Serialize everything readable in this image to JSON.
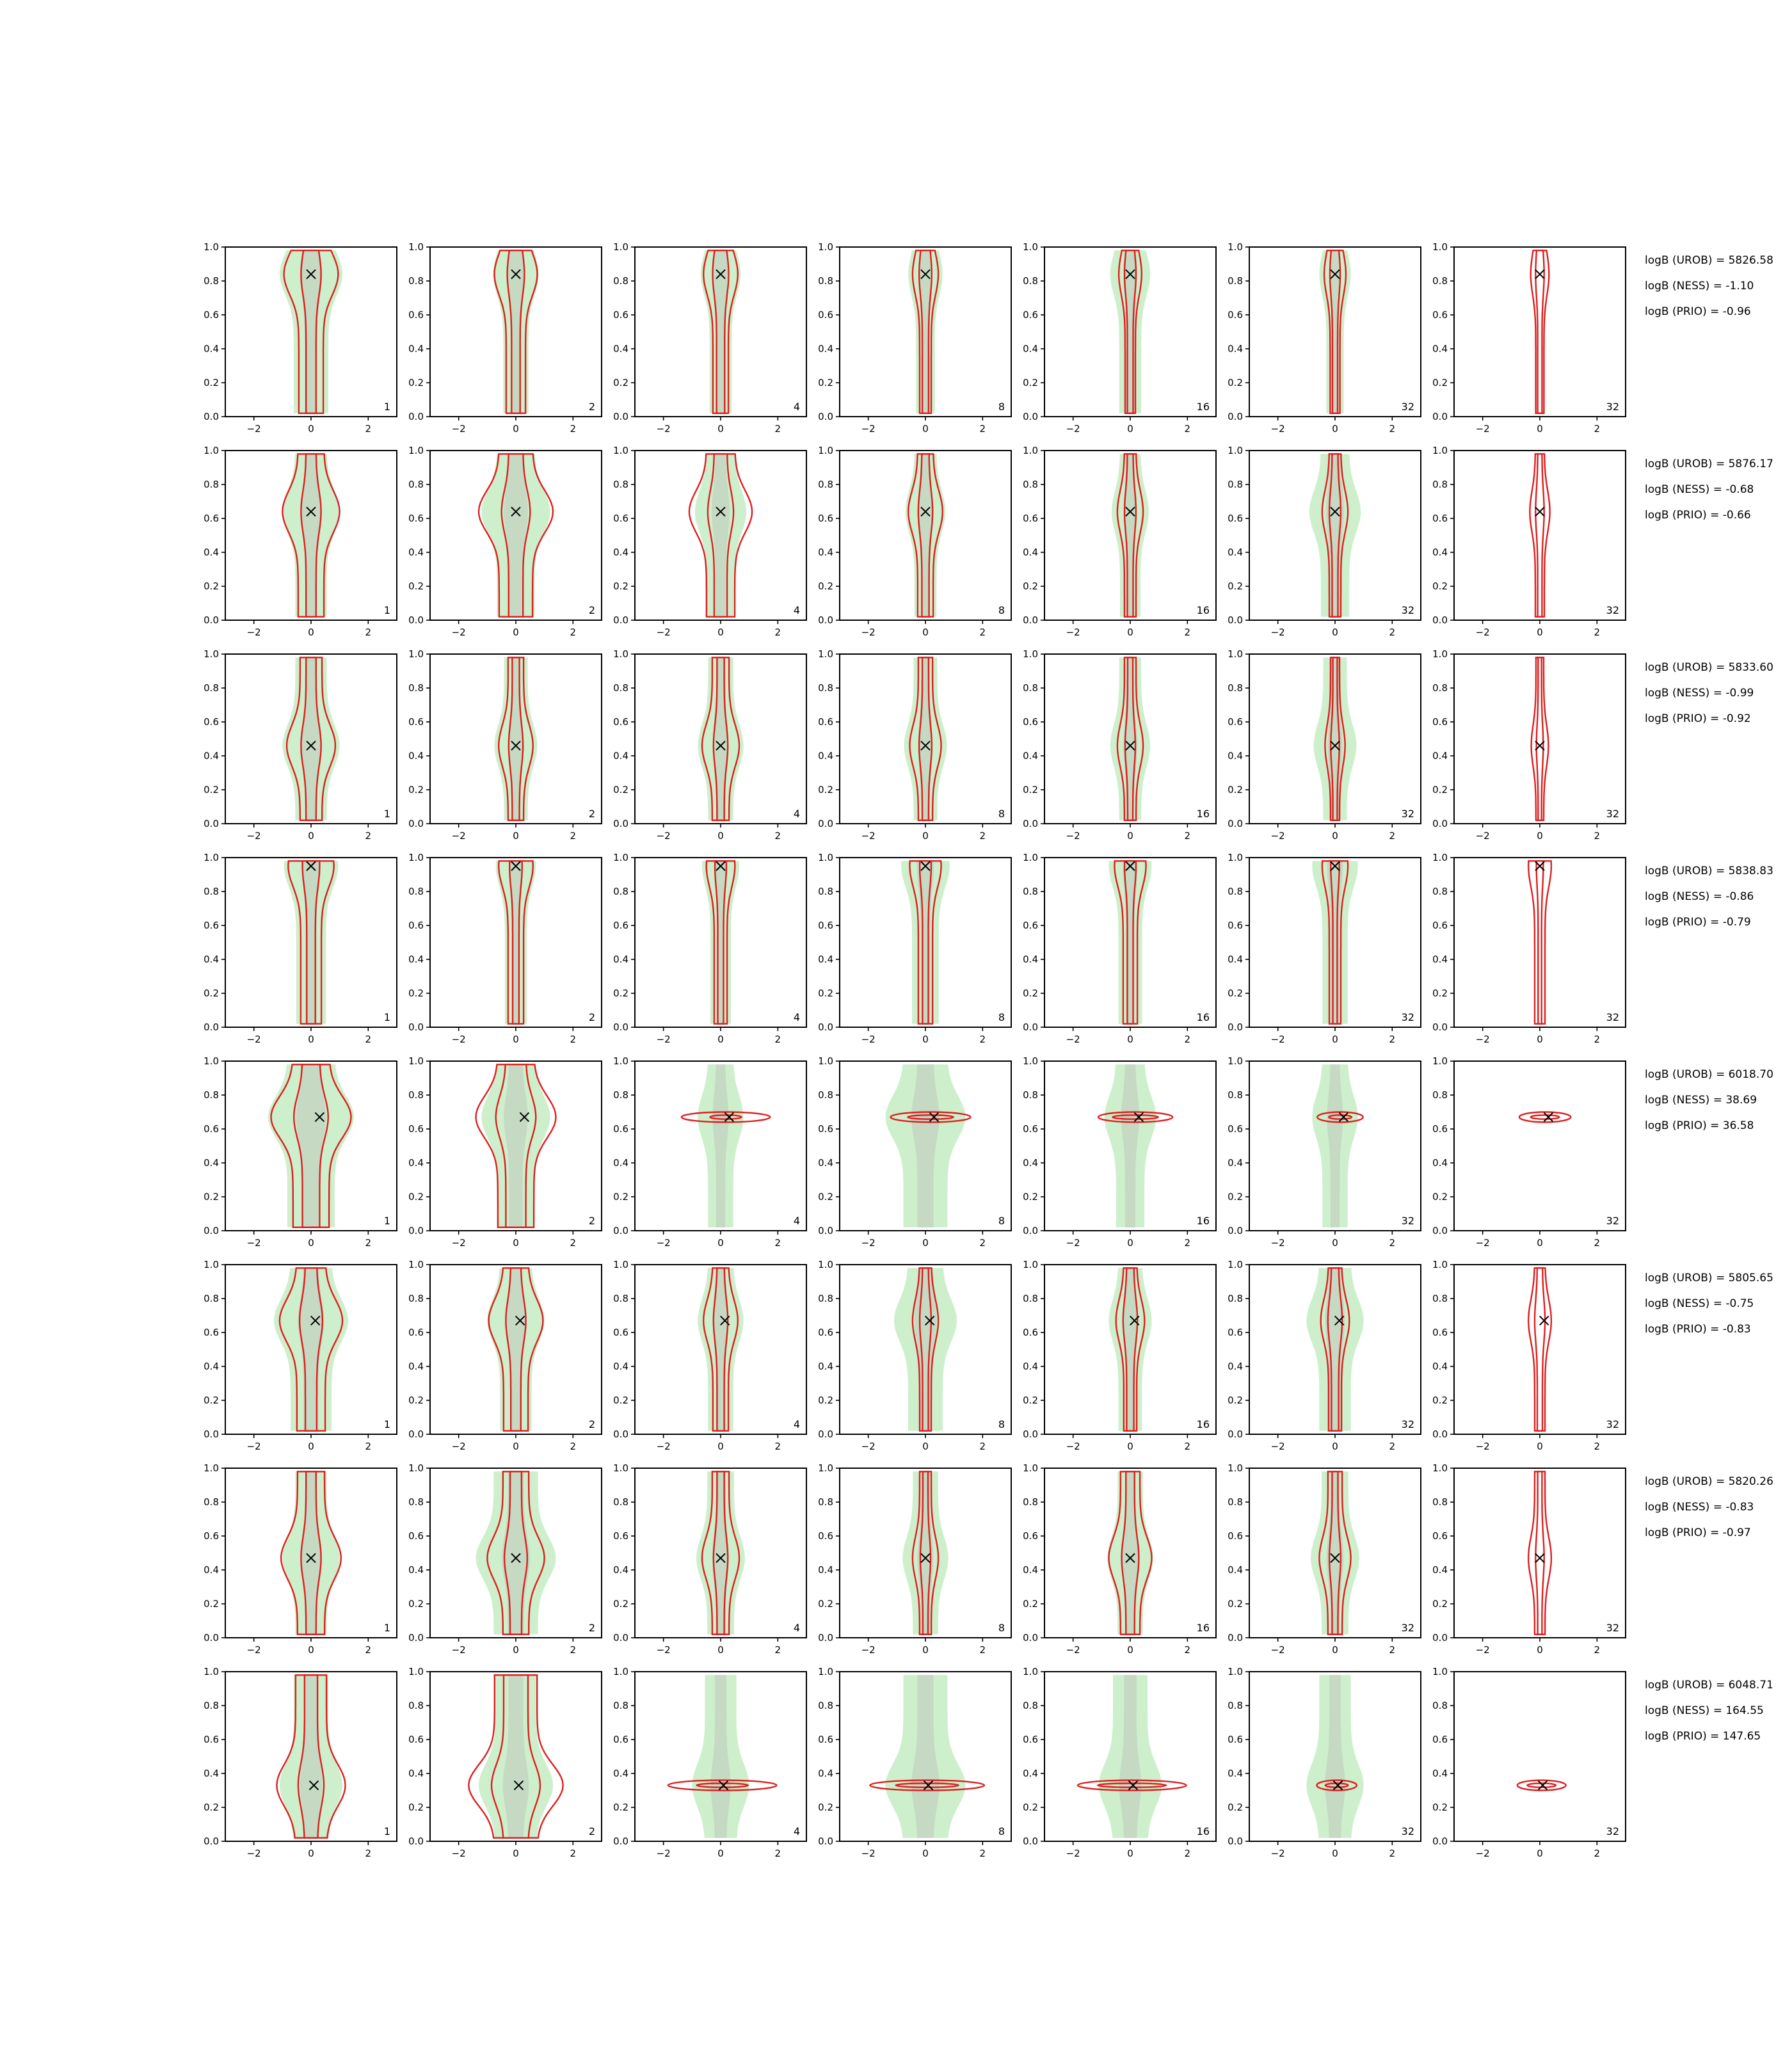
{
  "chart_data": {
    "type": "contour-grid",
    "title": "",
    "xlabel": "",
    "ylabel": "",
    "xlim": [
      -3,
      3
    ],
    "ylim": [
      0,
      1
    ],
    "x_ticks": [
      -2,
      0,
      2
    ],
    "y_ticks": [
      0.0,
      0.2,
      0.4,
      0.6,
      0.8,
      1.0
    ],
    "x_tick_labels": [
      "−2",
      "0",
      "2"
    ],
    "y_tick_labels": [
      "0.0",
      "0.2",
      "0.4",
      "0.6",
      "0.8",
      "1.0"
    ],
    "grid": false,
    "legend": "none",
    "colors": {
      "reference_region_outer": "#cdefcc",
      "reference_region_inner": "#c5d9c3",
      "posterior_contour": "#dd1f1f",
      "true_value_marker": "#000000"
    },
    "column_labels": [
      "1",
      "2",
      "4",
      "8",
      "16",
      "32",
      "32"
    ],
    "rows": [
      {
        "true_point": {
          "x": 0.0,
          "y": 0.84
        },
        "stats": [
          "logB (UROB) = 5826.58",
          "logB (NESS) = -1.10",
          "logB (PRIO) = -0.96"
        ],
        "contour_half_width": [
          [
            0.95,
            0.75,
            0.6,
            0.45,
            0.4,
            0.38,
            0.32
          ],
          [
            0.35,
            0.3,
            0.28,
            0.22,
            0.2,
            0.18,
            0.15
          ]
        ],
        "region_half_width": [
          1.1,
          0.8,
          0.7,
          0.6,
          0.7,
          0.55,
          0.0
        ]
      },
      {
        "true_point": {
          "x": 0.0,
          "y": 0.64
        },
        "stats": [
          "logB (UROB) = 5876.17",
          "logB (NESS) = -0.68",
          "logB (PRIO) = -0.66"
        ],
        "contour_half_width": [
          [
            1.0,
            1.3,
            1.1,
            0.6,
            0.45,
            0.45,
            0.35
          ],
          [
            0.35,
            0.5,
            0.45,
            0.25,
            0.2,
            0.2,
            0.15
          ]
        ],
        "region_half_width": [
          1.0,
          1.2,
          0.9,
          0.7,
          0.65,
          0.9,
          0.0
        ]
      },
      {
        "true_point": {
          "x": 0.0,
          "y": 0.46
        },
        "stats": [
          "logB (UROB) = 5833.60",
          "logB (NESS) = -0.99",
          "logB (PRIO) = -0.92"
        ],
        "contour_half_width": [
          [
            0.85,
            0.6,
            0.65,
            0.55,
            0.45,
            0.35,
            0.3
          ],
          [
            0.35,
            0.25,
            0.25,
            0.22,
            0.18,
            0.15,
            0.12
          ]
        ],
        "region_half_width": [
          1.0,
          0.75,
          0.8,
          0.75,
          0.7,
          0.75,
          0.0
        ]
      },
      {
        "true_point": {
          "x": 0.0,
          "y": 0.95
        },
        "stats": [
          "logB (UROB) = 5838.83",
          "logB (NESS) = -0.86",
          "logB (PRIO) = -0.79"
        ],
        "contour_half_width": [
          [
            0.8,
            0.6,
            0.5,
            0.55,
            0.55,
            0.45,
            0.4
          ],
          [
            0.3,
            0.22,
            0.2,
            0.2,
            0.2,
            0.15,
            0.12
          ]
        ],
        "region_half_width": [
          0.95,
          0.7,
          0.65,
          0.85,
          0.75,
          0.8,
          0.0
        ]
      },
      {
        "true_point": {
          "x": 0.3,
          "y": 0.67
        },
        "stats": [
          "logB (UROB) = 6018.70",
          "logB (NESS) = 38.69",
          "logB (PRIO) = 36.58"
        ],
        "contour_half_width": [
          [
            1.4,
            1.4,
            1.55,
            1.4,
            1.3,
            0.8,
            0.9
          ],
          [
            0.6,
            0.7,
            0.55,
            0.8,
            0.8,
            0.4,
            0.5
          ]
        ],
        "region_half_width": [
          1.5,
          1.2,
          0.8,
          1.4,
          0.9,
          0.8,
          0.0
        ]
      },
      {
        "true_point": {
          "x": 0.15,
          "y": 0.67
        },
        "stats": [
          "logB (UROB) = 5805.65",
          "logB (NESS) = -0.75",
          "logB (PRIO) = -0.83"
        ],
        "contour_half_width": [
          [
            1.1,
            0.95,
            0.6,
            0.45,
            0.5,
            0.5,
            0.4
          ],
          [
            0.4,
            0.35,
            0.25,
            0.2,
            0.25,
            0.25,
            0.18
          ]
        ],
        "region_half_width": [
          1.3,
          1.0,
          0.8,
          1.1,
          0.75,
          1.0,
          0.0
        ]
      },
      {
        "true_point": {
          "x": 0.0,
          "y": 0.47
        },
        "stats": [
          "logB (UROB) = 5820.26",
          "logB (NESS) = -0.83",
          "logB (PRIO) = -0.97"
        ],
        "contour_half_width": [
          [
            1.05,
            1.0,
            0.65,
            0.45,
            0.75,
            0.55,
            0.4
          ],
          [
            0.35,
            0.4,
            0.25,
            0.18,
            0.3,
            0.2,
            0.15
          ]
        ],
        "region_half_width": [
          1.0,
          1.4,
          0.85,
          0.8,
          0.8,
          0.85,
          0.0
        ]
      },
      {
        "true_point": {
          "x": 0.1,
          "y": 0.33
        },
        "stats": [
          "logB (UROB) = 6048.71",
          "logB (NESS) = 164.55",
          "logB (PRIO) = 147.65"
        ],
        "contour_half_width": [
          [
            1.2,
            1.65,
            1.9,
            2.0,
            1.9,
            0.7,
            0.85
          ],
          [
            0.45,
            0.85,
            0.9,
            1.1,
            1.2,
            0.4,
            0.5
          ]
        ],
        "region_half_width": [
          1.1,
          1.3,
          1.0,
          1.4,
          1.1,
          1.0,
          0.0
        ]
      }
    ]
  }
}
